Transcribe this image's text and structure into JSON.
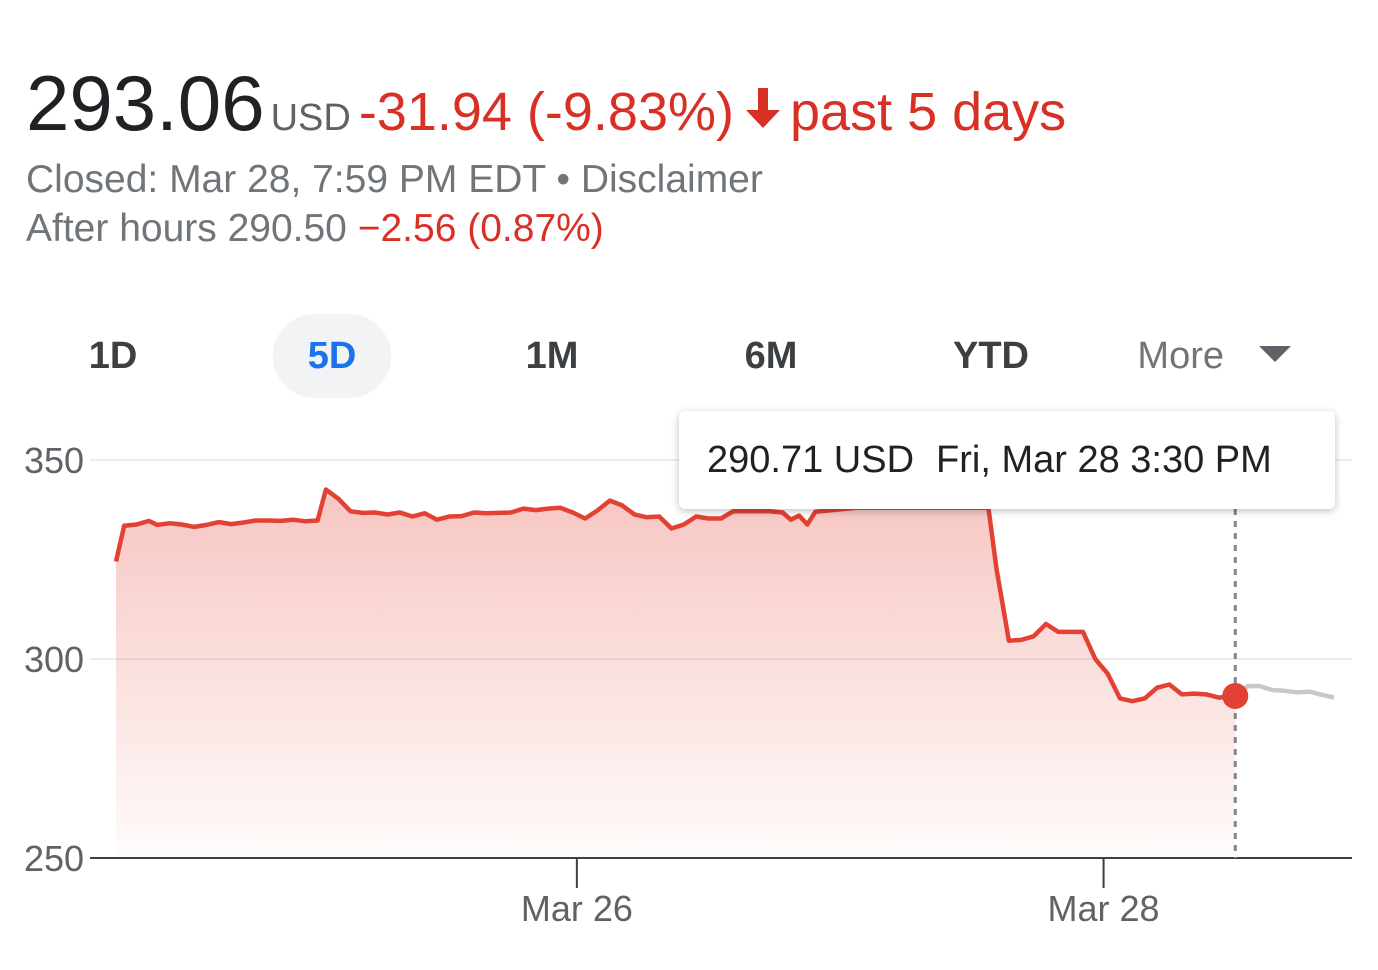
{
  "header": {
    "price": "293.06",
    "currency": "USD",
    "change": "-31.94 (-9.83%)",
    "period": "past 5 days",
    "closed_label": "Closed: Mar 28, 7:59 PM EDT",
    "separator": "•",
    "disclaimer": "Disclaimer",
    "after_hours_label": "After hours 290.50",
    "after_hours_change": "−2.56 (0.87%)"
  },
  "tabs": [
    "1D",
    "5D",
    "1M",
    "6M",
    "YTD",
    "More"
  ],
  "active_tab": "5D",
  "tooltip": {
    "value": "290.71 USD",
    "time": "Fri, Mar 28 3:30 PM"
  },
  "colors": {
    "negative": "#d93025",
    "line": "#e34133",
    "after_hours_line": "#c8c8c8",
    "active_tab": "#1a73e8"
  },
  "chart_data": {
    "type": "line",
    "ylim": [
      250,
      350
    ],
    "yticks": [
      350,
      300,
      250
    ],
    "xticks": [
      {
        "label": "Mar 26",
        "x": 112
      },
      {
        "label": "Mar 28",
        "x": 240
      }
    ],
    "grid": true,
    "series": [
      {
        "values": [
          [
            0,
            324.5
          ],
          [
            2,
            333.5
          ],
          [
            5,
            333.8
          ],
          [
            8,
            334.7
          ],
          [
            10,
            333.7
          ],
          [
            13,
            334.1
          ],
          [
            16,
            333.8
          ],
          [
            19,
            333.2
          ],
          [
            22,
            333.7
          ],
          [
            25,
            334.4
          ],
          [
            28,
            333.9
          ],
          [
            31,
            334.3
          ],
          [
            34,
            334.8
          ],
          [
            37,
            334.8
          ],
          [
            40,
            334.7
          ],
          [
            43,
            335.0
          ],
          [
            46,
            334.6
          ],
          [
            49,
            334.8
          ],
          [
            51,
            342.6
          ],
          [
            54,
            340.3
          ],
          [
            57,
            337.1
          ],
          [
            60,
            336.7
          ],
          [
            63,
            336.8
          ],
          [
            66,
            336.3
          ],
          [
            69,
            336.8
          ],
          [
            72,
            335.8
          ],
          [
            75,
            336.6
          ],
          [
            78,
            335.0
          ],
          [
            81,
            335.8
          ],
          [
            84,
            335.9
          ],
          [
            87,
            336.8
          ],
          [
            90,
            336.6
          ],
          [
            93,
            336.7
          ],
          [
            96,
            336.8
          ],
          [
            99,
            337.8
          ],
          [
            102,
            337.4
          ],
          [
            105,
            337.8
          ],
          [
            108,
            338.0
          ],
          [
            111,
            336.8
          ],
          [
            114,
            335.3
          ],
          [
            117,
            337.3
          ],
          [
            120,
            339.8
          ],
          [
            123,
            338.6
          ],
          [
            126,
            336.3
          ],
          [
            129,
            335.6
          ],
          [
            132,
            335.8
          ],
          [
            135,
            332.8
          ],
          [
            138,
            333.8
          ],
          [
            141,
            335.8
          ],
          [
            144,
            335.3
          ],
          [
            147,
            335.3
          ],
          [
            150,
            337.1
          ],
          [
            153,
            337.1
          ],
          [
            156,
            337.1
          ],
          [
            159,
            337.1
          ],
          [
            162,
            336.8
          ],
          [
            164,
            335.0
          ],
          [
            166,
            336.0
          ],
          [
            168,
            333.8
          ],
          [
            170,
            337.0
          ],
          [
            180,
            338.0
          ],
          [
            190,
            338.0
          ],
          [
            200,
            338.0
          ],
          [
            212,
            338.0
          ],
          [
            214,
            322.5
          ],
          [
            217,
            304.6
          ],
          [
            220,
            304.8
          ],
          [
            223,
            305.7
          ],
          [
            226,
            308.8
          ],
          [
            229,
            306.8
          ],
          [
            232,
            306.8
          ],
          [
            235,
            306.8
          ],
          [
            238,
            300.0
          ],
          [
            241,
            296.3
          ],
          [
            244,
            290.1
          ],
          [
            247,
            289.4
          ],
          [
            250,
            290.1
          ],
          [
            253,
            292.8
          ],
          [
            256,
            293.6
          ],
          [
            259,
            291.1
          ],
          [
            262,
            291.3
          ],
          [
            265,
            291.1
          ],
          [
            268,
            290.3
          ],
          [
            272,
            290.71
          ]
        ]
      },
      {
        "values": [
          [
            272,
            290.71
          ],
          [
            275,
            293.2
          ],
          [
            278,
            293.2
          ],
          [
            281,
            292.2
          ],
          [
            284,
            292.0
          ],
          [
            287,
            291.6
          ],
          [
            290,
            291.8
          ],
          [
            293,
            291.0
          ],
          [
            296,
            290.3
          ]
        ]
      }
    ],
    "highlight": {
      "x": 272,
      "y": 290.71
    }
  }
}
